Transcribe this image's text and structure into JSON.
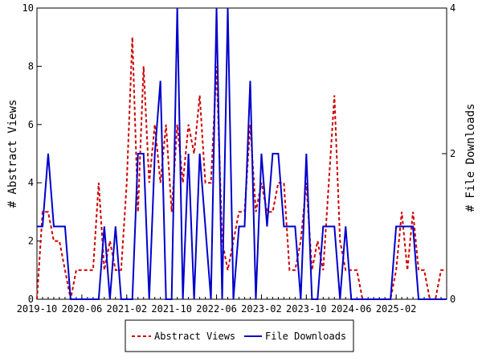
{
  "chart_data": {
    "type": "line",
    "x_tick_labels": [
      "2019-10",
      "2020-06",
      "2021-02",
      "2021-10",
      "2022-06",
      "2023-02",
      "2023-10",
      "2024-06",
      "2025-02"
    ],
    "y_left": {
      "label": "# Abstract Views",
      "ticks": [
        "0",
        "2",
        "4",
        "6",
        "8",
        "10"
      ],
      "range": [
        0,
        10
      ]
    },
    "y_right": {
      "label": "# File Downloads",
      "ticks": [
        "0",
        "2",
        "4"
      ],
      "range": [
        0,
        4
      ]
    },
    "grid": false,
    "legend_position": "bottom",
    "series": [
      {
        "name": "Abstract Views",
        "axis": "left",
        "color": "#cc0000",
        "style": "dashed",
        "values": [
          0,
          3,
          3,
          2,
          2,
          1,
          0,
          1,
          1,
          1,
          1,
          4,
          1,
          2,
          1,
          1,
          4,
          9,
          3,
          8,
          4,
          6,
          4,
          6,
          3,
          6,
          4,
          6,
          5,
          7,
          4,
          4,
          8,
          2,
          1,
          2,
          3,
          3,
          6,
          3,
          4,
          3,
          3,
          4,
          4,
          1,
          1,
          2,
          4,
          1,
          2,
          1,
          4,
          7,
          2,
          1,
          1,
          1,
          0,
          0,
          0,
          0,
          0,
          0,
          1,
          3,
          1,
          3,
          1,
          1,
          0,
          0,
          1,
          1
        ]
      },
      {
        "name": "File Downloads",
        "axis": "right",
        "color": "#0000cc",
        "style": "solid",
        "values": [
          1,
          1,
          2,
          1,
          1,
          1,
          0,
          0,
          0,
          0,
          0,
          0,
          1,
          0,
          1,
          0,
          0,
          0,
          2,
          2,
          0,
          2,
          3,
          0,
          0,
          4,
          0,
          2,
          0,
          2,
          1,
          0,
          4,
          0,
          4,
          0,
          1,
          1,
          3,
          0,
          2,
          1,
          2,
          2,
          1,
          1,
          1,
          0,
          2,
          0,
          0,
          1,
          1,
          1,
          0,
          1,
          0,
          0,
          0,
          0,
          0,
          0,
          0,
          0,
          1,
          1,
          1,
          1,
          0,
          0,
          0,
          0,
          0,
          0
        ]
      }
    ]
  }
}
